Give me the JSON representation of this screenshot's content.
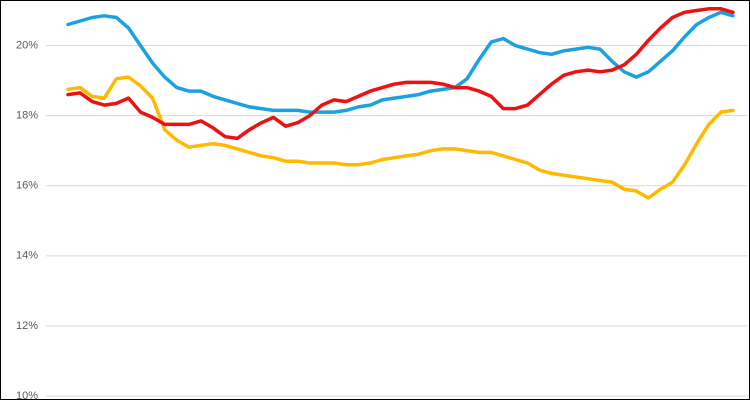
{
  "chart_data": {
    "type": "line",
    "ylim": [
      10,
      21.3
    ],
    "yticks": [
      {
        "value": 10,
        "label": "10%"
      },
      {
        "value": 12,
        "label": "12%"
      },
      {
        "value": 14,
        "label": "14%"
      },
      {
        "value": 16,
        "label": "16%"
      },
      {
        "value": 18,
        "label": "18%"
      },
      {
        "value": 20,
        "label": "20%"
      }
    ],
    "grid": true,
    "series": [
      {
        "color": "#ffb900",
        "values": [
          18.75,
          18.8,
          18.55,
          18.5,
          19.05,
          19.1,
          18.85,
          18.5,
          17.6,
          17.3,
          17.1,
          17.15,
          17.2,
          17.15,
          17.05,
          16.95,
          16.85,
          16.8,
          16.7,
          16.7,
          16.65,
          16.65,
          16.65,
          16.6,
          16.6,
          16.65,
          16.75,
          16.8,
          16.85,
          16.9,
          17.0,
          17.05,
          17.05,
          17.0,
          16.95,
          16.95,
          16.85,
          16.75,
          16.65,
          16.45,
          16.35,
          16.3,
          16.25,
          16.2,
          16.15,
          16.1,
          15.9,
          15.85,
          15.65,
          15.9,
          16.1,
          16.6,
          17.2,
          17.75,
          18.1,
          18.15
        ]
      },
      {
        "color": "#1ba1e2",
        "values": [
          20.6,
          20.7,
          20.8,
          20.85,
          20.8,
          20.5,
          20.0,
          19.5,
          19.1,
          18.8,
          18.7,
          18.7,
          18.55,
          18.45,
          18.35,
          18.25,
          18.2,
          18.15,
          18.15,
          18.15,
          18.1,
          18.1,
          18.1,
          18.15,
          18.25,
          18.3,
          18.45,
          18.5,
          18.55,
          18.6,
          18.7,
          18.75,
          18.8,
          19.05,
          19.6,
          20.1,
          20.2,
          20.0,
          19.9,
          19.8,
          19.75,
          19.85,
          19.9,
          19.95,
          19.9,
          19.55,
          19.25,
          19.1,
          19.25,
          19.55,
          19.85,
          20.25,
          20.6,
          20.8,
          20.95,
          20.85
        ]
      },
      {
        "color": "#ee1111",
        "values": [
          18.6,
          18.65,
          18.4,
          18.3,
          18.35,
          18.5,
          18.1,
          17.95,
          17.75,
          17.75,
          17.75,
          17.85,
          17.65,
          17.4,
          17.35,
          17.6,
          17.8,
          17.95,
          17.7,
          17.8,
          18.0,
          18.3,
          18.45,
          18.4,
          18.55,
          18.7,
          18.8,
          18.9,
          18.95,
          18.95,
          18.95,
          18.9,
          18.8,
          18.8,
          18.7,
          18.55,
          18.2,
          18.2,
          18.3,
          18.6,
          18.9,
          19.15,
          19.25,
          19.3,
          19.25,
          19.3,
          19.45,
          19.75,
          20.15,
          20.5,
          20.8,
          20.95,
          21.0,
          21.05,
          21.05,
          20.95
        ]
      }
    ]
  }
}
